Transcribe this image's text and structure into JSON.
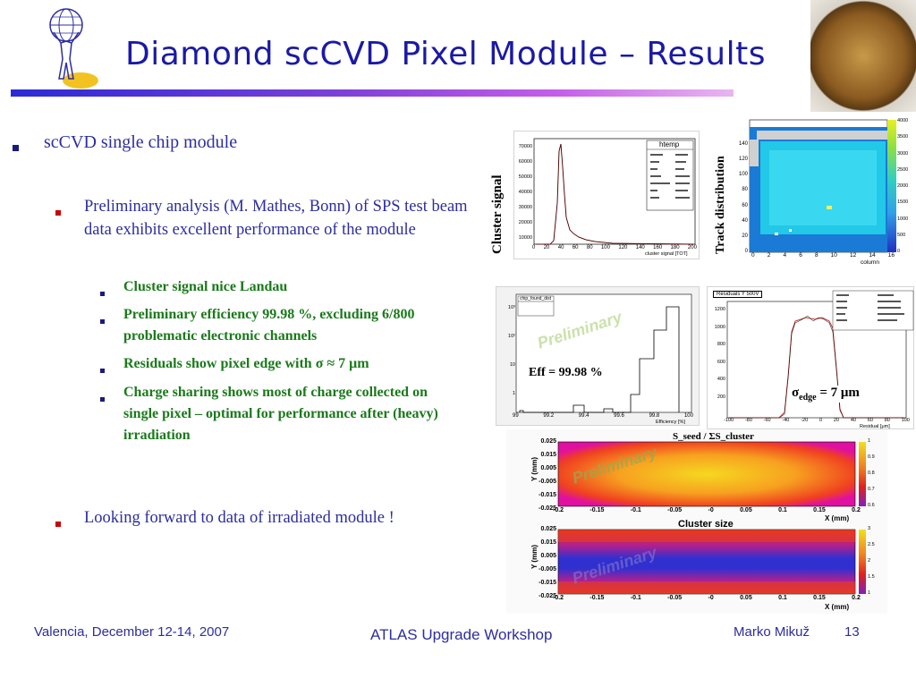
{
  "title": "Diamond scCVD Pixel Module – Results",
  "bullets": {
    "level1_a": "scCVD single chip module",
    "level2_a": "Preliminary analysis (M. Mathes, Bonn) of SPS test beam data exhibits excellent performance of the module",
    "level3": [
      "Cluster signal nice Landau",
      "Preliminary efficiency 99.98 %, excluding 6/800 problematic electronic channels",
      "Residuals show pixel edge with σ ≈ 7 μm",
      "Charge sharing shows most of charge collected on single pixel – optimal  for performance after (heavy) irradiation"
    ],
    "level2_b": "Looking forward to data of irradiated module !"
  },
  "figures": {
    "cluster_signal_label": "Cluster signal",
    "cluster_hist_title": "htemp",
    "cluster_xaxis": "cluster signal [TOT]",
    "cluster_xticks": [
      "0",
      "20",
      "40",
      "60",
      "80",
      "100",
      "120",
      "140",
      "160",
      "180",
      "200"
    ],
    "cluster_yticks": [
      "70000",
      "60000",
      "50000",
      "40000",
      "30000",
      "20000",
      "10000"
    ],
    "track_label": "Track distribution",
    "track_xticks": [
      "0",
      "2",
      "4",
      "6",
      "8",
      "10",
      "12",
      "14",
      "16"
    ],
    "track_yticks": [
      "140",
      "120",
      "100",
      "80",
      "60",
      "40",
      "20",
      "0"
    ],
    "track_xaxis": "column",
    "track_scale": [
      "4000",
      "3500",
      "3000",
      "2500",
      "2000",
      "1500",
      "1000",
      "500",
      "0"
    ],
    "eff_title": "chip_found_dist",
    "eff_xaxis": "Efficiency [%]",
    "eff_label": "Eff = 99.98 %",
    "eff_xticks": [
      "99",
      "99.2",
      "99.4",
      "99.6",
      "99.8",
      "100"
    ],
    "eff_yticks": [
      "10³",
      "10²",
      "10",
      "1"
    ],
    "preliminary": "Preliminary",
    "res_title": "Residuals Y 500V",
    "res_xaxis": "Residual [μm]",
    "res_label_sigma": "σ",
    "res_label_sub": "edge",
    "res_label_val": " = 7 μm",
    "res_xticks": [
      "-100",
      "-80",
      "-60",
      "-40",
      "-20",
      "0",
      "20",
      "40",
      "60",
      "80",
      "100"
    ],
    "res_yticks": [
      "1200",
      "1000",
      "800",
      "600",
      "400",
      "200"
    ],
    "map1_title": "S_seed / ΣS_cluster",
    "map2_title": "Cluster size",
    "map_ylabel": "Y (mm)",
    "map_xlabel": "X (mm)",
    "map_yticks": [
      "0.025",
      "0.015",
      "0.005",
      "-0.005",
      "-0.015",
      "-0.025"
    ],
    "map_xticks": [
      "-0.2",
      "-0.15",
      "-0.1",
      "-0.05",
      "-0",
      "0.05",
      "0.1",
      "0.15",
      "0.2"
    ],
    "map1_scale": [
      "1",
      "0.9",
      "0.8",
      "0.7",
      "0.6"
    ],
    "map2_scale": [
      "3",
      "2.5",
      "2",
      "1.5",
      "1"
    ]
  },
  "footer": {
    "left": "Valencia, December 12-14, 2007",
    "center": "ATLAS Upgrade Workshop",
    "right": "Marko Mikuž",
    "page": "13"
  }
}
